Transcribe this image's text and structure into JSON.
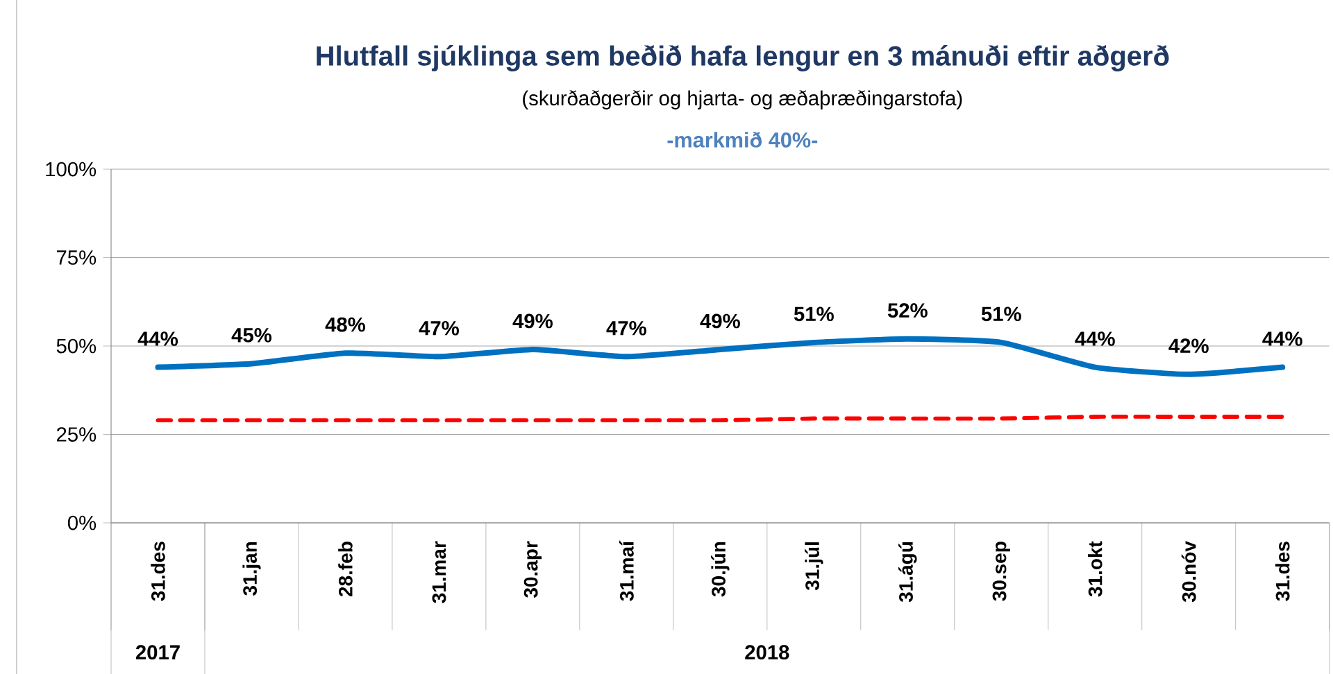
{
  "chart_data": {
    "type": "line",
    "title": "Hlutfall sjúklinga sem beðið hafa lengur en 3 mánuði eftir aðgerð",
    "subtitle": "(skurðaðgerðir og hjarta- og æðaþræðingarstofa)",
    "annotations": [
      "-markmið 40%-",
      "2017",
      "2018"
    ],
    "categories": [
      "31.des",
      "31.jan",
      "28.feb",
      "31.mar",
      "30.apr",
      "31.maí",
      "30.jún",
      "31.júl",
      "31.ágú",
      "30.sep",
      "31.okt",
      "30.nóv",
      "31.des"
    ],
    "series": [
      {
        "color": "#0070c0",
        "values": [
          44,
          45,
          48,
          47,
          49,
          47,
          49,
          51,
          52,
          51,
          44,
          42,
          44
        ],
        "value_labels": [
          "44%",
          "45%",
          "48%",
          "47%",
          "49%",
          "47%",
          "49%",
          "51%",
          "52%",
          "51%",
          "44%",
          "42%",
          "44%"
        ]
      },
      {
        "color": "#ff0000",
        "line_style": "dashed",
        "values": [
          29,
          29,
          29,
          29,
          29,
          29,
          29,
          29.5,
          29.5,
          29.5,
          30,
          30,
          30
        ]
      }
    ],
    "ylim": [
      0,
      100
    ],
    "yticks": [
      {
        "value": 0,
        "label": "0%"
      },
      {
        "value": 25,
        "label": "25%"
      },
      {
        "value": 50,
        "label": "50%"
      },
      {
        "value": 75,
        "label": "75%"
      },
      {
        "value": 100,
        "label": "100%"
      }
    ],
    "grid": "y",
    "marker": "none",
    "line_style": "solid"
  }
}
